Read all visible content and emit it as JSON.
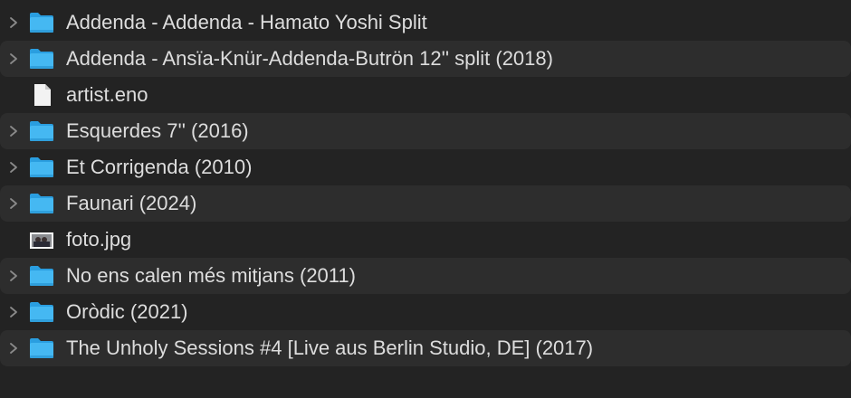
{
  "colors": {
    "folder": "#3fb4f0",
    "text": "#dddddd",
    "background": "#232323",
    "stripe": "#2d2d2d"
  },
  "items": [
    {
      "name": "Addenda - Addenda - Hamato Yoshi Split",
      "type": "folder"
    },
    {
      "name": "Addenda - Ansïa-Knür-Addenda-Butrön 12'' split (2018)",
      "type": "folder"
    },
    {
      "name": "artist.eno",
      "type": "file"
    },
    {
      "name": "Esquerdes 7'' (2016)",
      "type": "folder"
    },
    {
      "name": "Et Corrigenda (2010)",
      "type": "folder"
    },
    {
      "name": "Faunari (2024)",
      "type": "folder"
    },
    {
      "name": "foto.jpg",
      "type": "image"
    },
    {
      "name": "No ens calen més mitjans (2011)",
      "type": "folder"
    },
    {
      "name": "Oròdic (2021)",
      "type": "folder"
    },
    {
      "name": "The Unholy Sessions #4 [Live aus Berlin Studio, DE] (2017)",
      "type": "folder"
    }
  ]
}
